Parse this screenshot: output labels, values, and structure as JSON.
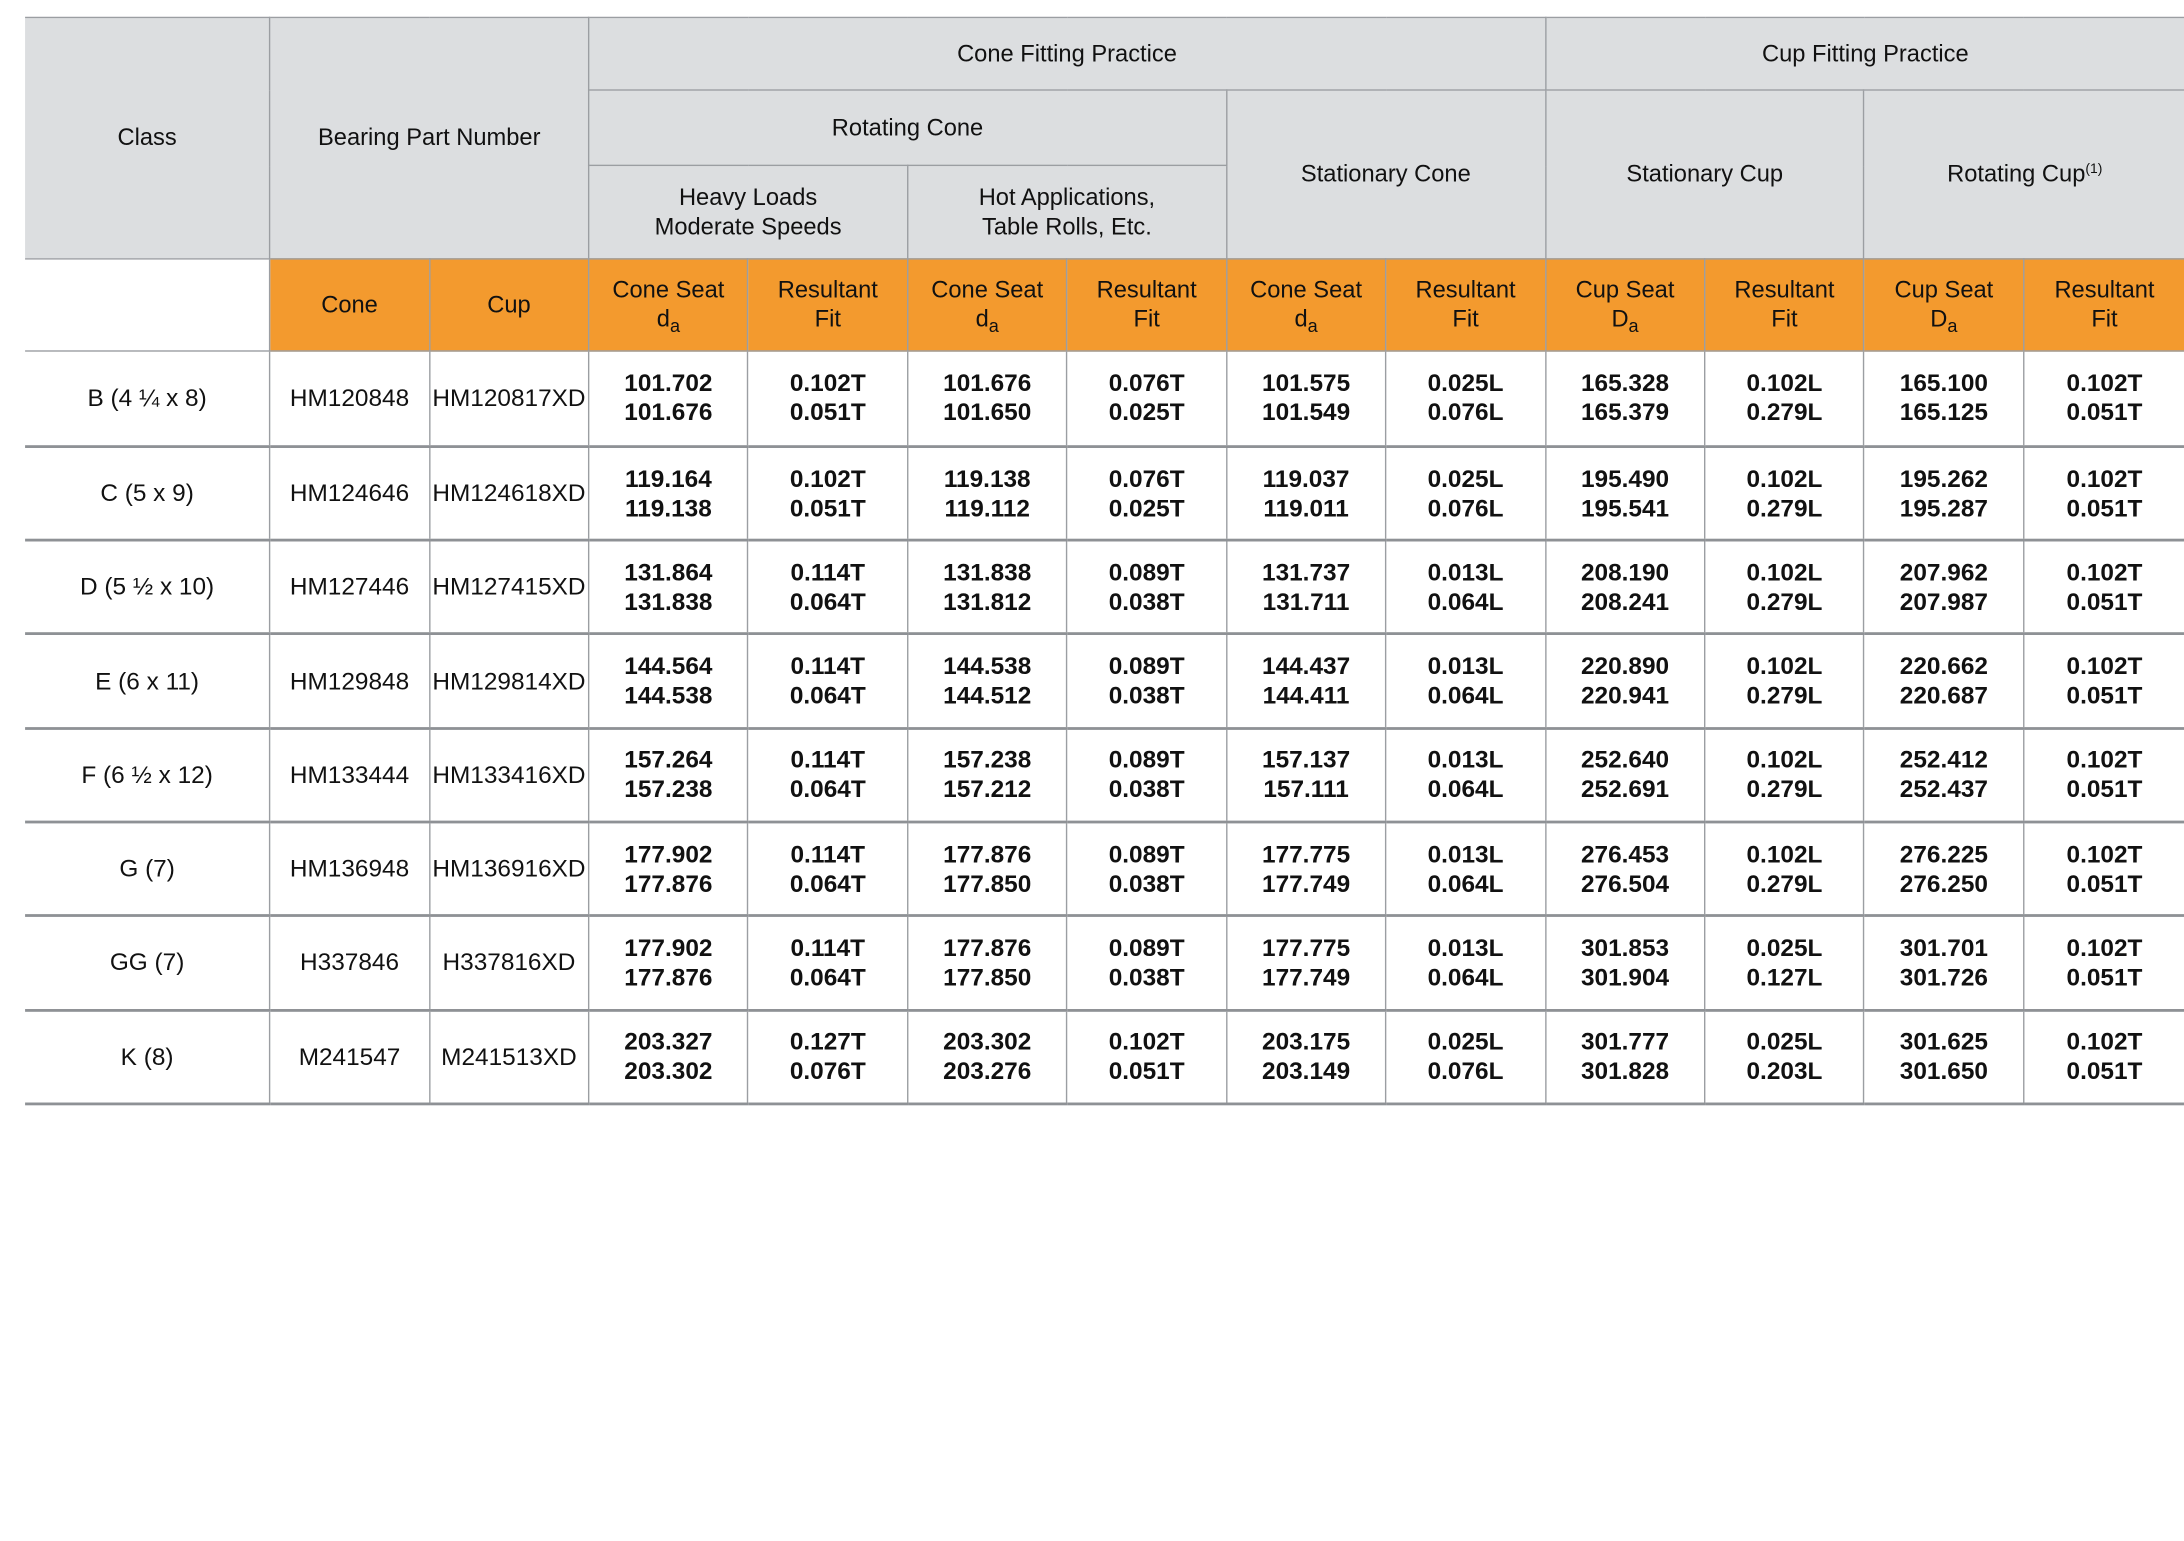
{
  "colors": {
    "header_bg": "#dcdee0",
    "subheader_bg": "#f39a2e",
    "border": "#9b9ea2",
    "text": "#111111"
  },
  "headers": {
    "class": "Class",
    "bearing_part_number": "Bearing Part Number",
    "cone_fitting_practice": "Cone Fitting Practice",
    "cup_fitting_practice": "Cup Fitting Practice",
    "rotating_cone": "Rotating Cone",
    "stationary_cone": "Stationary Cone",
    "stationary_cup": "Stationary Cup",
    "rotating_cup": "Rotating Cup",
    "rotating_cup_note": "(1)",
    "heavy_loads_1": "Heavy Loads",
    "heavy_loads_2": "Moderate Speeds",
    "hot_applications_1": "Hot Applications,",
    "hot_applications_2": "Table Rolls, Etc."
  },
  "subheaders": {
    "cone": "Cone",
    "cup": "Cup",
    "cone_seat": "Cone Seat",
    "cup_seat": "Cup Seat",
    "d_lower": "d",
    "d_upper": "D",
    "sub_a": "a",
    "resultant": "Resultant",
    "fit": "Fit"
  },
  "rows": [
    {
      "class": "B (4 ¼ x 8)",
      "cone": "HM120848",
      "cup": "HM120817XD",
      "v": [
        [
          "101.702",
          "101.676"
        ],
        [
          "0.102T",
          "0.051T"
        ],
        [
          "101.676",
          "101.650"
        ],
        [
          "0.076T",
          "0.025T"
        ],
        [
          "101.575",
          "101.549"
        ],
        [
          "0.025L",
          "0.076L"
        ],
        [
          "165.328",
          "165.379"
        ],
        [
          "0.102L",
          "0.279L"
        ],
        [
          "165.100",
          "165.125"
        ],
        [
          "0.102T",
          "0.051T"
        ]
      ]
    },
    {
      "class": "C (5 x 9)",
      "cone": "HM124646",
      "cup": "HM124618XD",
      "v": [
        [
          "119.164",
          "119.138"
        ],
        [
          "0.102T",
          "0.051T"
        ],
        [
          "119.138",
          "119.112"
        ],
        [
          "0.076T",
          "0.025T"
        ],
        [
          "119.037",
          "119.011"
        ],
        [
          "0.025L",
          "0.076L"
        ],
        [
          "195.490",
          "195.541"
        ],
        [
          "0.102L",
          "0.279L"
        ],
        [
          "195.262",
          "195.287"
        ],
        [
          "0.102T",
          "0.051T"
        ]
      ]
    },
    {
      "class": "D (5 ½ x 10)",
      "cone": "HM127446",
      "cup": "HM127415XD",
      "v": [
        [
          "131.864",
          "131.838"
        ],
        [
          "0.114T",
          "0.064T"
        ],
        [
          "131.838",
          "131.812"
        ],
        [
          "0.089T",
          "0.038T"
        ],
        [
          "131.737",
          "131.711"
        ],
        [
          "0.013L",
          "0.064L"
        ],
        [
          "208.190",
          "208.241"
        ],
        [
          "0.102L",
          "0.279L"
        ],
        [
          "207.962",
          "207.987"
        ],
        [
          "0.102T",
          "0.051T"
        ]
      ]
    },
    {
      "class": "E (6 x 11)",
      "cone": "HM129848",
      "cup": "HM129814XD",
      "v": [
        [
          "144.564",
          "144.538"
        ],
        [
          "0.114T",
          "0.064T"
        ],
        [
          "144.538",
          "144.512"
        ],
        [
          "0.089T",
          "0.038T"
        ],
        [
          "144.437",
          "144.411"
        ],
        [
          "0.013L",
          "0.064L"
        ],
        [
          "220.890",
          "220.941"
        ],
        [
          "0.102L",
          "0.279L"
        ],
        [
          "220.662",
          "220.687"
        ],
        [
          "0.102T",
          "0.051T"
        ]
      ]
    },
    {
      "class": "F (6 ½ x 12)",
      "cone": "HM133444",
      "cup": "HM133416XD",
      "v": [
        [
          "157.264",
          "157.238"
        ],
        [
          "0.114T",
          "0.064T"
        ],
        [
          "157.238",
          "157.212"
        ],
        [
          "0.089T",
          "0.038T"
        ],
        [
          "157.137",
          "157.111"
        ],
        [
          "0.013L",
          "0.064L"
        ],
        [
          "252.640",
          "252.691"
        ],
        [
          "0.102L",
          "0.279L"
        ],
        [
          "252.412",
          "252.437"
        ],
        [
          "0.102T",
          "0.051T"
        ]
      ]
    },
    {
      "class": "G (7)",
      "cone": "HM136948",
      "cup": "HM136916XD",
      "v": [
        [
          "177.902",
          "177.876"
        ],
        [
          "0.114T",
          "0.064T"
        ],
        [
          "177.876",
          "177.850"
        ],
        [
          "0.089T",
          "0.038T"
        ],
        [
          "177.775",
          "177.749"
        ],
        [
          "0.013L",
          "0.064L"
        ],
        [
          "276.453",
          "276.504"
        ],
        [
          "0.102L",
          "0.279L"
        ],
        [
          "276.225",
          "276.250"
        ],
        [
          "0.102T",
          "0.051T"
        ]
      ]
    },
    {
      "class": "GG (7)",
      "cone": "H337846",
      "cup": "H337816XD",
      "v": [
        [
          "177.902",
          "177.876"
        ],
        [
          "0.114T",
          "0.064T"
        ],
        [
          "177.876",
          "177.850"
        ],
        [
          "0.089T",
          "0.038T"
        ],
        [
          "177.775",
          "177.749"
        ],
        [
          "0.013L",
          "0.064L"
        ],
        [
          "301.853",
          "301.904"
        ],
        [
          "0.025L",
          "0.127L"
        ],
        [
          "301.701",
          "301.726"
        ],
        [
          "0.102T",
          "0.051T"
        ]
      ]
    },
    {
      "class": "K (8)",
      "cone": "M241547",
      "cup": "M241513XD",
      "v": [
        [
          "203.327",
          "203.302"
        ],
        [
          "0.127T",
          "0.076T"
        ],
        [
          "203.302",
          "203.276"
        ],
        [
          "0.102T",
          "0.051T"
        ],
        [
          "203.175",
          "203.149"
        ],
        [
          "0.025L",
          "0.076L"
        ],
        [
          "301.777",
          "301.828"
        ],
        [
          "0.025L",
          "0.203L"
        ],
        [
          "301.625",
          "301.650"
        ],
        [
          "0.102T",
          "0.051T"
        ]
      ]
    }
  ]
}
